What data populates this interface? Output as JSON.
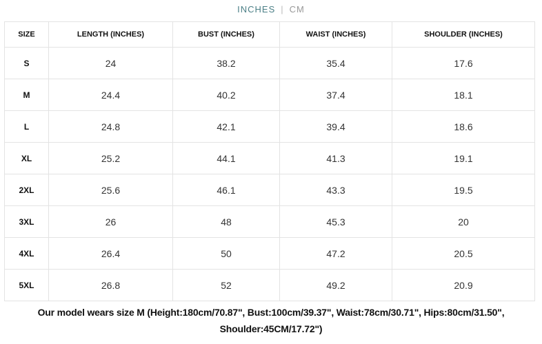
{
  "units": {
    "active": "INCHES",
    "inactive": "CM"
  },
  "table": {
    "headers": [
      "SIZE",
      "LENGTH (INCHES)",
      "BUST (INCHES)",
      "WAIST (INCHES)",
      "SHOULDER (INCHES)"
    ],
    "rows": [
      [
        "S",
        "24",
        "38.2",
        "35.4",
        "17.6"
      ],
      [
        "M",
        "24.4",
        "40.2",
        "37.4",
        "18.1"
      ],
      [
        "L",
        "24.8",
        "42.1",
        "39.4",
        "18.6"
      ],
      [
        "XL",
        "25.2",
        "44.1",
        "41.3",
        "19.1"
      ],
      [
        "2XL",
        "25.6",
        "46.1",
        "43.3",
        "19.5"
      ],
      [
        "3XL",
        "26",
        "48",
        "45.3",
        "20"
      ],
      [
        "4XL",
        "26.4",
        "50",
        "47.2",
        "20.5"
      ],
      [
        "5XL",
        "26.8",
        "52",
        "49.2",
        "20.9"
      ]
    ]
  },
  "note": {
    "line1": "Our model wears size M (Height:180cm/70.87\", Bust:100cm/39.37\", Waist:78cm/30.71\", Hips:80cm/31.50\",",
    "line2": "Shoulder:45CM/17.72\")"
  }
}
